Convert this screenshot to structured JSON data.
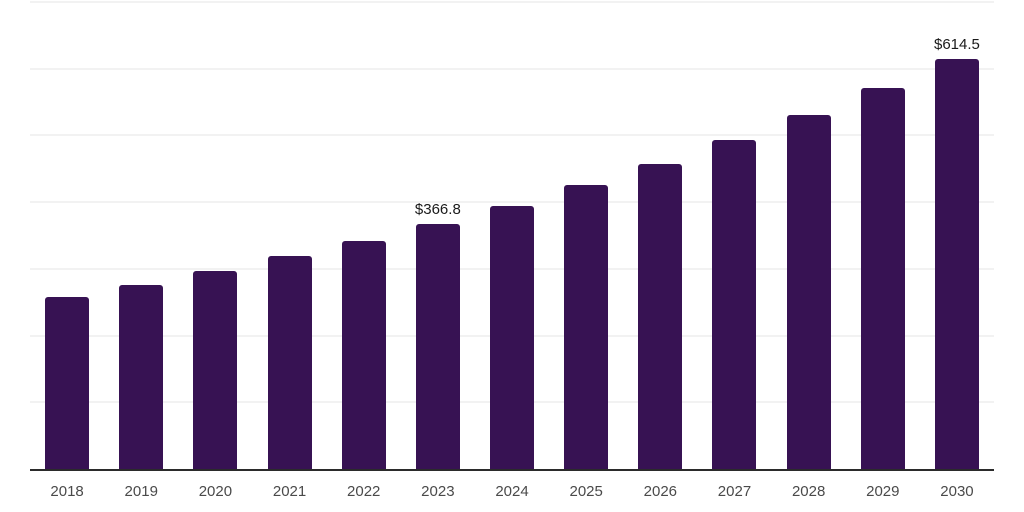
{
  "chart": {
    "background_color": "#ffffff",
    "bar_color": "#371253",
    "axis_line_color": "#2b2b2b",
    "gridline_color": "#f2f2f2",
    "tick_label_color": "#4a4a4a",
    "value_label_color": "#1a1a1a"
  },
  "chart_data": {
    "type": "bar",
    "title": "",
    "xlabel": "",
    "ylabel": "",
    "categories": [
      "2018",
      "2019",
      "2020",
      "2021",
      "2022",
      "2023",
      "2024",
      "2025",
      "2026",
      "2027",
      "2028",
      "2029",
      "2030"
    ],
    "values": [
      258.2,
      276.4,
      296.9,
      319.5,
      342.4,
      366.8,
      394.9,
      425.1,
      457.6,
      492.6,
      530.3,
      570.8,
      614.5
    ],
    "data_labels": {
      "2023": "$366.8",
      "2030": "$614.5"
    },
    "ylim": [
      0,
      700
    ],
    "gridline_step": 100,
    "y_tick_labels_shown": false,
    "grid": "horizontal",
    "legend": "none"
  }
}
